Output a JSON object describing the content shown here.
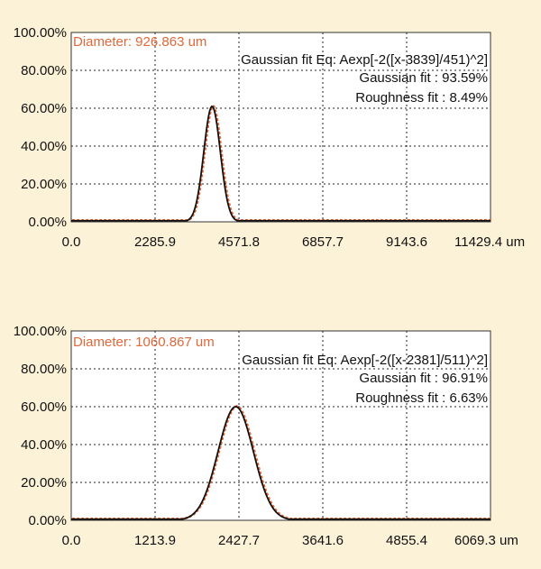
{
  "chart_data": [
    {
      "type": "line",
      "title": "",
      "xlabel": "",
      "ylabel": "",
      "xlim": [
        0.0,
        11429.4
      ],
      "ylim": [
        0,
        100
      ],
      "x_ticks": [
        "0.0",
        "2285.9",
        "4571.8",
        "6857.7",
        "9143.6",
        "11429.4 um"
      ],
      "y_ticks": [
        "100.00%",
        "80.00%",
        "60.00%",
        "40.00%",
        "20.00%",
        "0.00%"
      ],
      "grid": true,
      "annotations": {
        "diameter": "Diameter: 926.863 um",
        "equation": "Gaussian fit Eq: Aexp[-2([x-3839]/451)^2]",
        "gaussian_fit": "Gaussian fit : 93.59%",
        "roughness_fit": "Roughness fit : 8.49%"
      },
      "gaussian": {
        "center": 3839,
        "width": 451,
        "amplitude": 61
      },
      "series": [],
      "colors": {
        "fit": "#111111",
        "data": "#e86a3a"
      }
    },
    {
      "type": "line",
      "title": "",
      "xlabel": "",
      "ylabel": "",
      "xlim": [
        0.0,
        6069.3
      ],
      "ylim": [
        0,
        100
      ],
      "x_ticks": [
        "0.0",
        "1213.9",
        "2427.7",
        "3641.6",
        "4855.4",
        "6069.3 um"
      ],
      "y_ticks": [
        "100.00%",
        "80.00%",
        "60.00%",
        "40.00%",
        "20.00%",
        "0.00%"
      ],
      "grid": true,
      "annotations": {
        "diameter": "Diameter: 1060.867 um",
        "equation": "Gaussian fit Eq: Aexp[-2([x-2381]/511)^2]",
        "gaussian_fit": "Gaussian fit : 96.91%",
        "roughness_fit": "Roughness fit : 6.63%"
      },
      "gaussian": {
        "center": 2381,
        "width": 511,
        "amplitude": 60
      },
      "series": [],
      "colors": {
        "fit": "#111111",
        "data": "#e86a3a"
      }
    }
  ]
}
